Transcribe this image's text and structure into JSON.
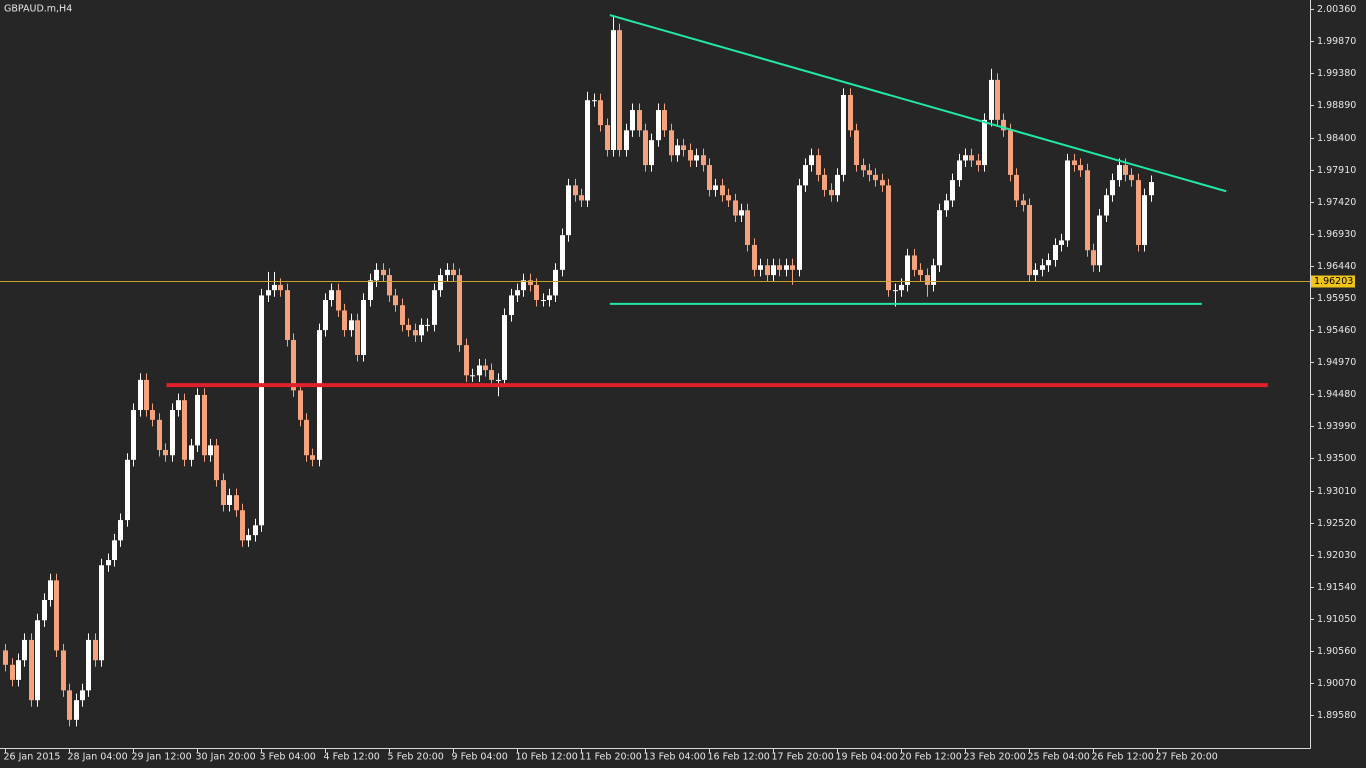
{
  "chart_data": {
    "type": "candlestick",
    "title": "GBPAUD.m,H4",
    "background": "#262626",
    "axis_color": "#d8d8d8",
    "up_color": "#ffffff",
    "down_color": "#f4a37e",
    "xlim": [
      -0.8,
      203.9
    ],
    "ylim": [
      1.8908,
      2.005
    ],
    "yticks": [
      {
        "value": 2.0036,
        "label": "2.00360"
      },
      {
        "value": 1.9987,
        "label": "1.99870"
      },
      {
        "value": 1.9938,
        "label": "1.99380"
      },
      {
        "value": 1.9889,
        "label": "1.98890"
      },
      {
        "value": 1.984,
        "label": "1.98400"
      },
      {
        "value": 1.9791,
        "label": "1.97910"
      },
      {
        "value": 1.9742,
        "label": "1.97420"
      },
      {
        "value": 1.9693,
        "label": "1.96930"
      },
      {
        "value": 1.9644,
        "label": "1.96440"
      },
      {
        "value": 1.9595,
        "label": "1.95950"
      },
      {
        "value": 1.9546,
        "label": "1.95460"
      },
      {
        "value": 1.9497,
        "label": "1.94970"
      },
      {
        "value": 1.9448,
        "label": "1.94480"
      },
      {
        "value": 1.9399,
        "label": "1.93990"
      },
      {
        "value": 1.935,
        "label": "1.93500"
      },
      {
        "value": 1.9301,
        "label": "1.93010"
      },
      {
        "value": 1.9252,
        "label": "1.92520"
      },
      {
        "value": 1.9203,
        "label": "1.92030"
      },
      {
        "value": 1.9154,
        "label": "1.91540"
      },
      {
        "value": 1.9105,
        "label": "1.91050"
      },
      {
        "value": 1.9056,
        "label": "1.90560"
      },
      {
        "value": 1.9007,
        "label": "1.90070"
      },
      {
        "value": 1.8958,
        "label": "1.89580"
      }
    ],
    "xticks": [
      {
        "value": 0,
        "label": "26 Jan 2015"
      },
      {
        "value": 10,
        "label": "28 Jan 04:00"
      },
      {
        "value": 20,
        "label": "29 Jan 12:00"
      },
      {
        "value": 30,
        "label": "30 Jan 20:00"
      },
      {
        "value": 40,
        "label": "3 Feb 04:00"
      },
      {
        "value": 50,
        "label": "4 Feb 12:00"
      },
      {
        "value": 60,
        "label": "5 Feb 20:00"
      },
      {
        "value": 70,
        "label": "9 Feb 04:00"
      },
      {
        "value": 80,
        "label": "10 Feb 12:00"
      },
      {
        "value": 90,
        "label": "11 Feb 20:00"
      },
      {
        "value": 100,
        "label": "13 Feb 04:00"
      },
      {
        "value": 110,
        "label": "16 Feb 12:00"
      },
      {
        "value": 120,
        "label": "17 Feb 20:00"
      },
      {
        "value": 130,
        "label": "19 Feb 04:00"
      },
      {
        "value": 140,
        "label": "20 Feb 12:00"
      },
      {
        "value": 150,
        "label": "23 Feb 20:00"
      },
      {
        "value": 160,
        "label": "25 Feb 04:00"
      },
      {
        "value": 170,
        "label": "26 Feb 12:00"
      },
      {
        "value": 180,
        "label": "27 Feb 20:00"
      }
    ],
    "bid": {
      "value": 1.96203,
      "color": "#c9a227",
      "label_color": "#f0c419"
    },
    "lines": [
      {
        "color": "#22e8a6",
        "width": 2,
        "x": [
          94.5,
          190.8
        ],
        "y": [
          2.0027,
          1.9758
        ]
      },
      {
        "color": "#22e8a6",
        "width": 2,
        "x": [
          94.5,
          187
        ],
        "y": [
          1.9586,
          1.9586
        ]
      },
      {
        "color": "#e0202a",
        "width": 4,
        "x": [
          25.2,
          197.3
        ],
        "y": [
          1.9462,
          1.9462
        ]
      }
    ],
    "candles": [
      [
        1.9057,
        1.9067,
        1.9025,
        1.9035
      ],
      [
        1.9035,
        1.9045,
        1.9002,
        1.9012
      ],
      [
        1.9012,
        1.9052,
        1.9002,
        1.9042
      ],
      [
        1.9042,
        1.9083,
        1.9032,
        1.9073
      ],
      [
        1.9073,
        1.9083,
        1.8971,
        1.8981
      ],
      [
        1.8981,
        1.9113,
        1.8971,
        1.9103
      ],
      [
        1.9103,
        1.9144,
        1.9093,
        1.9134
      ],
      [
        1.9134,
        1.9174,
        1.9124,
        1.9164
      ],
      [
        1.9164,
        1.9174,
        1.9047,
        1.9057
      ],
      [
        1.9057,
        1.9067,
        1.8986,
        1.8996
      ],
      [
        1.8996,
        1.9006,
        1.8941,
        1.8951
      ],
      [
        1.8951,
        1.8991,
        1.8941,
        1.8981
      ],
      [
        1.8981,
        1.9006,
        1.8971,
        1.8996
      ],
      [
        1.8996,
        1.9083,
        1.8986,
        1.9073
      ],
      [
        1.9073,
        1.9083,
        1.9032,
        1.9042
      ],
      [
        1.9042,
        1.9197,
        1.9032,
        1.9187
      ],
      [
        1.9187,
        1.9205,
        1.9177,
        1.9195
      ],
      [
        1.9195,
        1.9235,
        1.9185,
        1.9225
      ],
      [
        1.9225,
        1.9266,
        1.9215,
        1.9256
      ],
      [
        1.9256,
        1.9358,
        1.9246,
        1.9348
      ],
      [
        1.9348,
        1.9434,
        1.9338,
        1.9424
      ],
      [
        1.9424,
        1.948,
        1.9414,
        1.947
      ],
      [
        1.947,
        1.948,
        1.9414,
        1.9424
      ],
      [
        1.9424,
        1.9434,
        1.9399,
        1.9409
      ],
      [
        1.9409,
        1.9419,
        1.9353,
        1.9363
      ],
      [
        1.9363,
        1.9373,
        1.9345,
        1.9355
      ],
      [
        1.9355,
        1.9434,
        1.9345,
        1.9424
      ],
      [
        1.9424,
        1.9449,
        1.9414,
        1.9439
      ],
      [
        1.9439,
        1.9449,
        1.9338,
        1.9348
      ],
      [
        1.9348,
        1.938,
        1.9338,
        1.937
      ],
      [
        1.937,
        1.9457,
        1.936,
        1.9447
      ],
      [
        1.9447,
        1.9457,
        1.9345,
        1.9355
      ],
      [
        1.9355,
        1.938,
        1.9345,
        1.937
      ],
      [
        1.937,
        1.938,
        1.9307,
        1.9317
      ],
      [
        1.9317,
        1.9327,
        1.9269,
        1.9279
      ],
      [
        1.9279,
        1.9304,
        1.9269,
        1.9294
      ],
      [
        1.9294,
        1.9304,
        1.9261,
        1.9271
      ],
      [
        1.9271,
        1.9281,
        1.9215,
        1.9225
      ],
      [
        1.9225,
        1.9243,
        1.9215,
        1.9233
      ],
      [
        1.9233,
        1.9258,
        1.9223,
        1.9248
      ],
      [
        1.9248,
        1.9609,
        1.9238,
        1.9599
      ],
      [
        1.9599,
        1.9635,
        1.9589,
        1.9607
      ],
      [
        1.9607,
        1.9635,
        1.9597,
        1.9615
      ],
      [
        1.9615,
        1.9625,
        1.9597,
        1.9607
      ],
      [
        1.9607,
        1.9617,
        1.9521,
        1.9531
      ],
      [
        1.9531,
        1.9541,
        1.9444,
        1.9454
      ],
      [
        1.9454,
        1.9464,
        1.9399,
        1.9409
      ],
      [
        1.9409,
        1.9419,
        1.9345,
        1.9355
      ],
      [
        1.9355,
        1.9365,
        1.9338,
        1.9348
      ],
      [
        1.9348,
        1.9556,
        1.9338,
        1.9546
      ],
      [
        1.9546,
        1.9602,
        1.9536,
        1.9592
      ],
      [
        1.9592,
        1.9617,
        1.9582,
        1.9607
      ],
      [
        1.9607,
        1.9617,
        1.9566,
        1.9576
      ],
      [
        1.9576,
        1.9586,
        1.9536,
        1.9546
      ],
      [
        1.9546,
        1.9571,
        1.9536,
        1.9561
      ],
      [
        1.9561,
        1.9571,
        1.9498,
        1.9508
      ],
      [
        1.9508,
        1.9602,
        1.9498,
        1.9592
      ],
      [
        1.9592,
        1.9632,
        1.9582,
        1.9622
      ],
      [
        1.9622,
        1.9648,
        1.9612,
        1.9638
      ],
      [
        1.9638,
        1.9648,
        1.962,
        1.963
      ],
      [
        1.963,
        1.964,
        1.9589,
        1.9599
      ],
      [
        1.9599,
        1.9609,
        1.9574,
        1.9584
      ],
      [
        1.9584,
        1.9594,
        1.9544,
        1.9554
      ],
      [
        1.9554,
        1.9564,
        1.9536,
        1.9546
      ],
      [
        1.9546,
        1.9556,
        1.9528,
        1.9538
      ],
      [
        1.9538,
        1.9564,
        1.9528,
        1.9554
      ],
      [
        1.9554,
        1.9564,
        1.9544,
        1.9554
      ],
      [
        1.9554,
        1.9617,
        1.9544,
        1.9607
      ],
      [
        1.9607,
        1.964,
        1.9597,
        1.963
      ],
      [
        1.963,
        1.9648,
        1.962,
        1.9638
      ],
      [
        1.9638,
        1.9648,
        1.962,
        1.963
      ],
      [
        1.963,
        1.964,
        1.9513,
        1.9523
      ],
      [
        1.9523,
        1.9533,
        1.9467,
        1.9477
      ],
      [
        1.9477,
        1.9487,
        1.9467,
        1.9477
      ],
      [
        1.9477,
        1.9502,
        1.9467,
        1.9492
      ],
      [
        1.9492,
        1.9502,
        1.9475,
        1.9485
      ],
      [
        1.9485,
        1.9495,
        1.946,
        1.947
      ],
      [
        1.947,
        1.948,
        1.9445,
        1.947
      ],
      [
        1.947,
        1.9579,
        1.946,
        1.9569
      ],
      [
        1.9569,
        1.9609,
        1.9559,
        1.9599
      ],
      [
        1.9599,
        1.9617,
        1.9589,
        1.9607
      ],
      [
        1.9607,
        1.9632,
        1.9597,
        1.9622
      ],
      [
        1.9622,
        1.9632,
        1.9605,
        1.9615
      ],
      [
        1.9615,
        1.9625,
        1.9582,
        1.9592
      ],
      [
        1.9592,
        1.9602,
        1.9582,
        1.9592
      ],
      [
        1.9592,
        1.9609,
        1.9582,
        1.9599
      ],
      [
        1.9599,
        1.9648,
        1.9589,
        1.9638
      ],
      [
        1.9638,
        1.9701,
        1.9628,
        1.9691
      ],
      [
        1.9691,
        1.9777,
        1.9681,
        1.9767
      ],
      [
        1.9767,
        1.9777,
        1.9742,
        1.9752
      ],
      [
        1.9752,
        1.9762,
        1.9734,
        1.9744
      ],
      [
        1.9744,
        1.991,
        1.9734,
        1.9897
      ],
      [
        1.9897,
        1.9907,
        1.9887,
        1.9897
      ],
      [
        1.9897,
        1.9907,
        1.9849,
        1.9859
      ],
      [
        1.9859,
        1.9869,
        1.9811,
        1.9821
      ],
      [
        1.9821,
        2.0024,
        1.9811,
        2.0004
      ],
      [
        2.0004,
        2.0014,
        1.9811,
        1.9821
      ],
      [
        1.9821,
        1.9861,
        1.9811,
        1.9851
      ],
      [
        1.9851,
        1.9892,
        1.9841,
        1.9882
      ],
      [
        1.9882,
        1.9892,
        1.9841,
        1.9851
      ],
      [
        1.9851,
        1.9861,
        1.9788,
        1.9798
      ],
      [
        1.9798,
        1.9846,
        1.9788,
        1.9836
      ],
      [
        1.9836,
        1.9892,
        1.9826,
        1.9882
      ],
      [
        1.9882,
        1.9892,
        1.9841,
        1.9851
      ],
      [
        1.9851,
        1.9861,
        1.9803,
        1.9813
      ],
      [
        1.9813,
        1.9838,
        1.9803,
        1.9828
      ],
      [
        1.9828,
        1.9838,
        1.9811,
        1.9821
      ],
      [
        1.9821,
        1.9831,
        1.9795,
        1.9805
      ],
      [
        1.9805,
        1.9823,
        1.9795,
        1.9813
      ],
      [
        1.9813,
        1.9823,
        1.9788,
        1.9798
      ],
      [
        1.9798,
        1.9808,
        1.975,
        1.976
      ],
      [
        1.976,
        1.9777,
        1.975,
        1.9767
      ],
      [
        1.9767,
        1.9777,
        1.9742,
        1.9752
      ],
      [
        1.9752,
        1.9762,
        1.9734,
        1.9744
      ],
      [
        1.9744,
        1.9754,
        1.9711,
        1.9721
      ],
      [
        1.9721,
        1.9739,
        1.9711,
        1.9729
      ],
      [
        1.9729,
        1.9739,
        1.9666,
        1.9676
      ],
      [
        1.9676,
        1.9686,
        1.9628,
        1.9638
      ],
      [
        1.9638,
        1.9655,
        1.9628,
        1.9645
      ],
      [
        1.9645,
        1.9655,
        1.962,
        1.963
      ],
      [
        1.963,
        1.9655,
        1.962,
        1.9645
      ],
      [
        1.9645,
        1.9655,
        1.9628,
        1.9638
      ],
      [
        1.9638,
        1.9655,
        1.9628,
        1.9645
      ],
      [
        1.9645,
        1.9655,
        1.9615,
        1.9638
      ],
      [
        1.9638,
        1.9777,
        1.9628,
        1.9767
      ],
      [
        1.9767,
        1.9808,
        1.9757,
        1.9798
      ],
      [
        1.9798,
        1.9823,
        1.9788,
        1.9813
      ],
      [
        1.9813,
        1.9823,
        1.9773,
        1.9783
      ],
      [
        1.9783,
        1.9793,
        1.975,
        1.976
      ],
      [
        1.976,
        1.977,
        1.9742,
        1.9752
      ],
      [
        1.9752,
        1.9793,
        1.9742,
        1.9783
      ],
      [
        1.9783,
        1.9915,
        1.9773,
        1.9905
      ],
      [
        1.9905,
        1.9915,
        1.9841,
        1.9851
      ],
      [
        1.9851,
        1.9861,
        1.9788,
        1.9798
      ],
      [
        1.9798,
        1.9808,
        1.978,
        1.979
      ],
      [
        1.979,
        1.98,
        1.9773,
        1.9783
      ],
      [
        1.9783,
        1.9793,
        1.9765,
        1.9775
      ],
      [
        1.9775,
        1.9785,
        1.9757,
        1.9767
      ],
      [
        1.9767,
        1.9777,
        1.9597,
        1.9607
      ],
      [
        1.9607,
        1.9617,
        1.9582,
        1.9607
      ],
      [
        1.9607,
        1.9625,
        1.9597,
        1.9615
      ],
      [
        1.9615,
        1.967,
        1.9605,
        1.966
      ],
      [
        1.966,
        1.967,
        1.9628,
        1.9638
      ],
      [
        1.9638,
        1.9648,
        1.962,
        1.963
      ],
      [
        1.963,
        1.964,
        1.9597,
        1.9615
      ],
      [
        1.9615,
        1.9655,
        1.9605,
        1.9645
      ],
      [
        1.9645,
        1.9739,
        1.9635,
        1.9729
      ],
      [
        1.9729,
        1.9754,
        1.9719,
        1.9744
      ],
      [
        1.9744,
        1.9785,
        1.9734,
        1.9775
      ],
      [
        1.9775,
        1.9815,
        1.9765,
        1.9805
      ],
      [
        1.9805,
        1.9823,
        1.9795,
        1.9813
      ],
      [
        1.9813,
        1.9823,
        1.9795,
        1.9805
      ],
      [
        1.9805,
        1.9815,
        1.9788,
        1.9798
      ],
      [
        1.9798,
        1.9877,
        1.9788,
        1.9867
      ],
      [
        1.9867,
        1.9945,
        1.9857,
        1.9928
      ],
      [
        1.9928,
        1.9938,
        1.9857,
        1.9867
      ],
      [
        1.9867,
        1.9877,
        1.9841,
        1.9851
      ],
      [
        1.9851,
        1.9861,
        1.9773,
        1.9783
      ],
      [
        1.9783,
        1.9793,
        1.9734,
        1.9744
      ],
      [
        1.9744,
        1.9754,
        1.9727,
        1.9737
      ],
      [
        1.9737,
        1.9747,
        1.962,
        1.963
      ],
      [
        1.963,
        1.9648,
        1.962,
        1.9638
      ],
      [
        1.9638,
        1.9655,
        1.9628,
        1.9645
      ],
      [
        1.9645,
        1.9663,
        1.9635,
        1.9653
      ],
      [
        1.9653,
        1.9686,
        1.9643,
        1.9676
      ],
      [
        1.9676,
        1.9693,
        1.9666,
        1.9683
      ],
      [
        1.9683,
        1.9815,
        1.9673,
        1.9805
      ],
      [
        1.9805,
        1.9815,
        1.9788,
        1.9798
      ],
      [
        1.9798,
        1.9808,
        1.978,
        1.979
      ],
      [
        1.979,
        1.98,
        1.9658,
        1.9668
      ],
      [
        1.9668,
        1.9678,
        1.9635,
        1.9645
      ],
      [
        1.9645,
        1.9731,
        1.9635,
        1.9721
      ],
      [
        1.9721,
        1.9762,
        1.9711,
        1.9752
      ],
      [
        1.9752,
        1.9785,
        1.9742,
        1.9775
      ],
      [
        1.9775,
        1.9808,
        1.9765,
        1.9798
      ],
      [
        1.9798,
        1.9808,
        1.9773,
        1.9783
      ],
      [
        1.9783,
        1.9793,
        1.9765,
        1.9775
      ],
      [
        1.9775,
        1.9785,
        1.9666,
        1.9676
      ],
      [
        1.9676,
        1.9762,
        1.9666,
        1.9752
      ],
      [
        1.9752,
        1.9782,
        1.9742,
        1.9772
      ]
    ]
  }
}
